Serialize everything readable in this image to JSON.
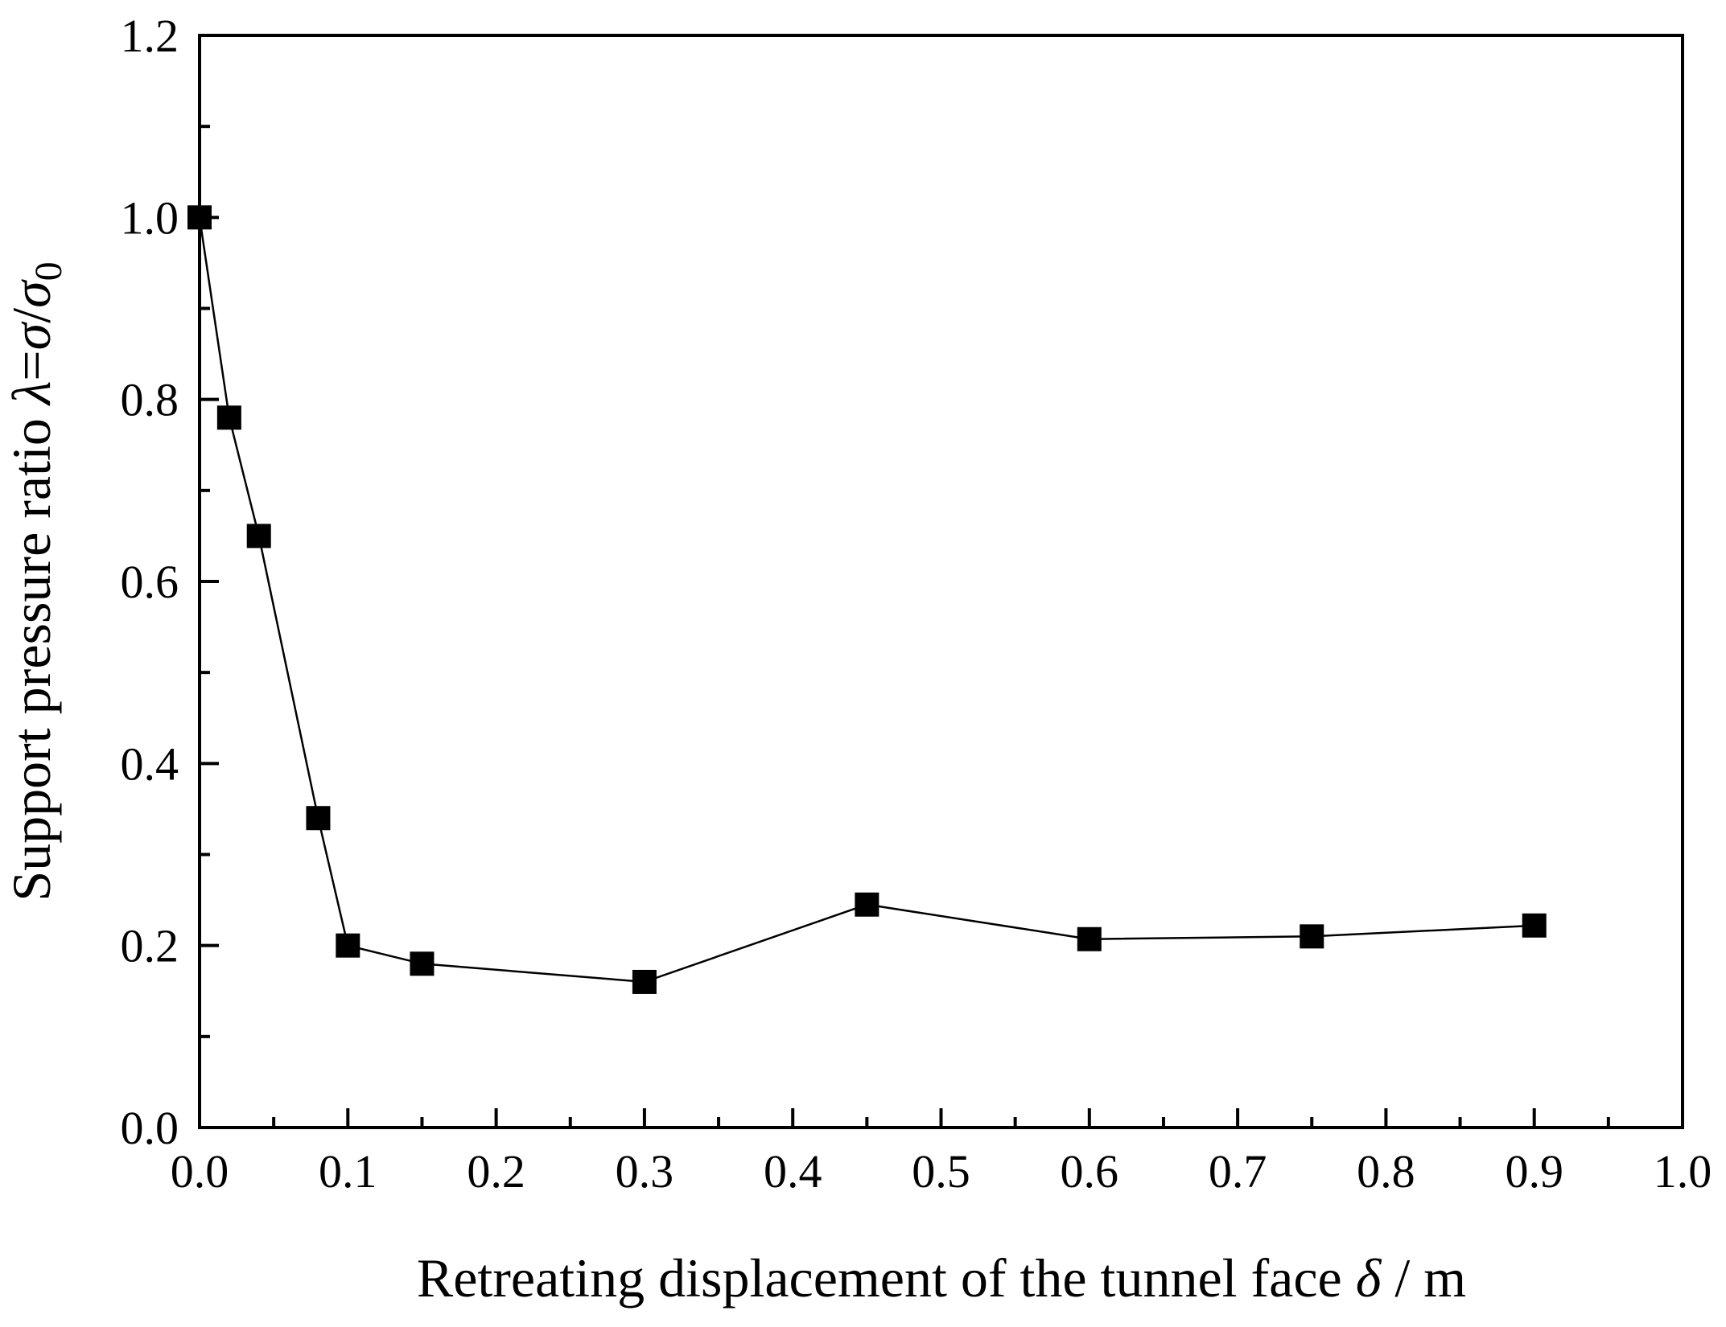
{
  "chart_data": {
    "type": "line",
    "title": "",
    "xlabel": "Retreating displacement of the tunnel face",
    "xlabel_symbol": "δ",
    "xlabel_unit": "/ m",
    "ylabel": "Support pressure ratio",
    "ylabel_symbol": "λ",
    "ylabel_eq": "=",
    "ylabel_sigma": "σ",
    "ylabel_slash": "/",
    "ylabel_sigma0": "σ",
    "ylabel_subscript": "0",
    "xlim": [
      0.0,
      1.0
    ],
    "ylim": [
      0.0,
      1.2
    ],
    "x_ticks": [
      "0.0",
      "0.1",
      "0.2",
      "0.3",
      "0.4",
      "0.5",
      "0.6",
      "0.7",
      "0.8",
      "0.9",
      "1.0"
    ],
    "y_ticks": [
      "0.0",
      "0.2",
      "0.4",
      "0.6",
      "0.8",
      "1.0",
      "1.2"
    ],
    "grid": false,
    "marker": "square",
    "color": "#000000",
    "series": [
      {
        "name": "lambda",
        "x": [
          0.0,
          0.02,
          0.04,
          0.08,
          0.1,
          0.15,
          0.3,
          0.45,
          0.6,
          0.75,
          0.9
        ],
        "y": [
          1.0,
          0.78,
          0.65,
          0.34,
          0.2,
          0.18,
          0.16,
          0.245,
          0.207,
          0.21,
          0.222
        ]
      }
    ]
  }
}
